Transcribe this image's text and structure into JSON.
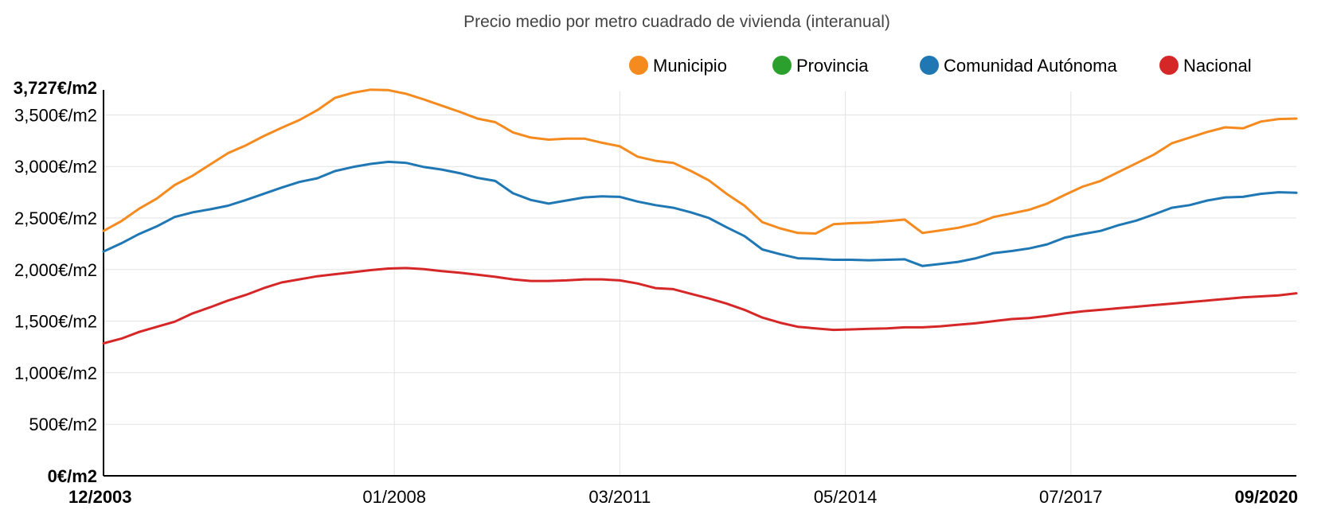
{
  "chart_data": {
    "type": "line",
    "title": "Precio medio por metro cuadrado de vivienda (interanual)",
    "legend_position": "top-right",
    "grid": true,
    "y_max_label": "3,727€/m2",
    "y_ticks": [
      "0€/m2",
      "500€/m2",
      "1,000€/m2",
      "1,500€/m2",
      "2,000€/m2",
      "2,500€/m2",
      "3,000€/m2",
      "3,500€/m2"
    ],
    "y_tick_values": [
      0,
      500,
      1000,
      1500,
      2000,
      2500,
      3000,
      3500
    ],
    "ylim": [
      0,
      3727
    ],
    "x_tick_labels": [
      "12/2003",
      "01/2008",
      "03/2011",
      "05/2014",
      "07/2017",
      "09/2020"
    ],
    "x_tick_dates": [
      "2003-12",
      "2008-01",
      "2011-03",
      "2014-05",
      "2017-07",
      "2020-09"
    ],
    "x_range": [
      "2003-12",
      "2020-09"
    ],
    "series": [
      {
        "name": "Municipio",
        "color": "#f58a1f",
        "points": [
          [
            "2003-12",
            2375
          ],
          [
            "2004-03",
            2470
          ],
          [
            "2004-06",
            2590
          ],
          [
            "2004-09",
            2690
          ],
          [
            "2004-12",
            2820
          ],
          [
            "2005-03",
            2910
          ],
          [
            "2005-06",
            3020
          ],
          [
            "2005-09",
            3130
          ],
          [
            "2005-12",
            3205
          ],
          [
            "2006-03",
            3295
          ],
          [
            "2006-06",
            3375
          ],
          [
            "2006-09",
            3450
          ],
          [
            "2006-12",
            3545
          ],
          [
            "2007-03",
            3665
          ],
          [
            "2007-06",
            3715
          ],
          [
            "2007-09",
            3745
          ],
          [
            "2007-12",
            3740
          ],
          [
            "2008-03",
            3705
          ],
          [
            "2008-06",
            3650
          ],
          [
            "2008-09",
            3590
          ],
          [
            "2008-12",
            3530
          ],
          [
            "2009-03",
            3465
          ],
          [
            "2009-06",
            3430
          ],
          [
            "2009-09",
            3330
          ],
          [
            "2009-12",
            3280
          ],
          [
            "2010-03",
            3260
          ],
          [
            "2010-06",
            3270
          ],
          [
            "2010-09",
            3270
          ],
          [
            "2010-12",
            3230
          ],
          [
            "2011-03",
            3195
          ],
          [
            "2011-06",
            3095
          ],
          [
            "2011-09",
            3055
          ],
          [
            "2011-12",
            3035
          ],
          [
            "2012-03",
            2955
          ],
          [
            "2012-06",
            2865
          ],
          [
            "2012-09",
            2735
          ],
          [
            "2012-12",
            2620
          ],
          [
            "2013-03",
            2460
          ],
          [
            "2013-06",
            2400
          ],
          [
            "2013-09",
            2355
          ],
          [
            "2013-12",
            2350
          ],
          [
            "2014-03",
            2440
          ],
          [
            "2014-06",
            2450
          ],
          [
            "2014-09",
            2455
          ],
          [
            "2014-12",
            2470
          ],
          [
            "2015-03",
            2485
          ],
          [
            "2015-06",
            2355
          ],
          [
            "2015-09",
            2380
          ],
          [
            "2015-12",
            2405
          ],
          [
            "2016-03",
            2445
          ],
          [
            "2016-06",
            2510
          ],
          [
            "2016-09",
            2545
          ],
          [
            "2016-12",
            2580
          ],
          [
            "2017-03",
            2640
          ],
          [
            "2017-06",
            2725
          ],
          [
            "2017-09",
            2805
          ],
          [
            "2017-12",
            2860
          ],
          [
            "2018-03",
            2945
          ],
          [
            "2018-06",
            3030
          ],
          [
            "2018-09",
            3115
          ],
          [
            "2018-12",
            3225
          ],
          [
            "2019-03",
            3280
          ],
          [
            "2019-06",
            3335
          ],
          [
            "2019-09",
            3380
          ],
          [
            "2019-12",
            3370
          ],
          [
            "2020-03",
            3435
          ],
          [
            "2020-06",
            3460
          ],
          [
            "2020-09",
            3465
          ]
        ]
      },
      {
        "name": "Provincia",
        "color": "#2ca02c",
        "points": []
      },
      {
        "name": "Comunidad Autónoma",
        "color": "#1f77b4",
        "points": [
          [
            "2003-12",
            2175
          ],
          [
            "2004-03",
            2255
          ],
          [
            "2004-06",
            2345
          ],
          [
            "2004-09",
            2420
          ],
          [
            "2004-12",
            2510
          ],
          [
            "2005-03",
            2555
          ],
          [
            "2005-06",
            2585
          ],
          [
            "2005-09",
            2620
          ],
          [
            "2005-12",
            2675
          ],
          [
            "2006-03",
            2735
          ],
          [
            "2006-06",
            2795
          ],
          [
            "2006-09",
            2850
          ],
          [
            "2006-12",
            2885
          ],
          [
            "2007-03",
            2955
          ],
          [
            "2007-06",
            2995
          ],
          [
            "2007-09",
            3025
          ],
          [
            "2007-12",
            3045
          ],
          [
            "2008-03",
            3035
          ],
          [
            "2008-06",
            2995
          ],
          [
            "2008-09",
            2970
          ],
          [
            "2008-12",
            2935
          ],
          [
            "2009-03",
            2890
          ],
          [
            "2009-06",
            2860
          ],
          [
            "2009-09",
            2740
          ],
          [
            "2009-12",
            2675
          ],
          [
            "2010-03",
            2640
          ],
          [
            "2010-06",
            2670
          ],
          [
            "2010-09",
            2700
          ],
          [
            "2010-12",
            2710
          ],
          [
            "2011-03",
            2705
          ],
          [
            "2011-06",
            2660
          ],
          [
            "2011-09",
            2625
          ],
          [
            "2011-12",
            2600
          ],
          [
            "2012-03",
            2555
          ],
          [
            "2012-06",
            2500
          ],
          [
            "2012-09",
            2410
          ],
          [
            "2012-12",
            2325
          ],
          [
            "2013-03",
            2195
          ],
          [
            "2013-06",
            2150
          ],
          [
            "2013-09",
            2110
          ],
          [
            "2013-12",
            2105
          ],
          [
            "2014-03",
            2095
          ],
          [
            "2014-06",
            2095
          ],
          [
            "2014-09",
            2090
          ],
          [
            "2014-12",
            2095
          ],
          [
            "2015-03",
            2100
          ],
          [
            "2015-06",
            2035
          ],
          [
            "2015-09",
            2055
          ],
          [
            "2015-12",
            2075
          ],
          [
            "2016-03",
            2110
          ],
          [
            "2016-06",
            2160
          ],
          [
            "2016-09",
            2180
          ],
          [
            "2016-12",
            2205
          ],
          [
            "2017-03",
            2245
          ],
          [
            "2017-06",
            2310
          ],
          [
            "2017-09",
            2345
          ],
          [
            "2017-12",
            2375
          ],
          [
            "2018-03",
            2430
          ],
          [
            "2018-06",
            2475
          ],
          [
            "2018-09",
            2535
          ],
          [
            "2018-12",
            2600
          ],
          [
            "2019-03",
            2625
          ],
          [
            "2019-06",
            2670
          ],
          [
            "2019-09",
            2700
          ],
          [
            "2019-12",
            2705
          ],
          [
            "2020-03",
            2735
          ],
          [
            "2020-06",
            2750
          ],
          [
            "2020-09",
            2745
          ]
        ]
      },
      {
        "name": "Nacional",
        "color": "#d62728",
        "points": [
          [
            "2003-12",
            1285
          ],
          [
            "2004-03",
            1330
          ],
          [
            "2004-06",
            1395
          ],
          [
            "2004-09",
            1445
          ],
          [
            "2004-12",
            1495
          ],
          [
            "2005-03",
            1575
          ],
          [
            "2005-06",
            1635
          ],
          [
            "2005-09",
            1700
          ],
          [
            "2005-12",
            1755
          ],
          [
            "2006-03",
            1820
          ],
          [
            "2006-06",
            1875
          ],
          [
            "2006-09",
            1905
          ],
          [
            "2006-12",
            1935
          ],
          [
            "2007-03",
            1955
          ],
          [
            "2007-06",
            1975
          ],
          [
            "2007-09",
            1995
          ],
          [
            "2007-12",
            2010
          ],
          [
            "2008-03",
            2015
          ],
          [
            "2008-06",
            2005
          ],
          [
            "2008-09",
            1985
          ],
          [
            "2008-12",
            1970
          ],
          [
            "2009-03",
            1950
          ],
          [
            "2009-06",
            1930
          ],
          [
            "2009-09",
            1905
          ],
          [
            "2009-12",
            1890
          ],
          [
            "2010-03",
            1890
          ],
          [
            "2010-06",
            1895
          ],
          [
            "2010-09",
            1905
          ],
          [
            "2010-12",
            1905
          ],
          [
            "2011-03",
            1895
          ],
          [
            "2011-06",
            1865
          ],
          [
            "2011-09",
            1820
          ],
          [
            "2011-12",
            1810
          ],
          [
            "2012-03",
            1765
          ],
          [
            "2012-06",
            1720
          ],
          [
            "2012-09",
            1670
          ],
          [
            "2012-12",
            1610
          ],
          [
            "2013-03",
            1535
          ],
          [
            "2013-06",
            1485
          ],
          [
            "2013-09",
            1445
          ],
          [
            "2013-12",
            1430
          ],
          [
            "2014-03",
            1415
          ],
          [
            "2014-06",
            1420
          ],
          [
            "2014-09",
            1425
          ],
          [
            "2014-12",
            1430
          ],
          [
            "2015-03",
            1440
          ],
          [
            "2015-06",
            1440
          ],
          [
            "2015-09",
            1450
          ],
          [
            "2015-12",
            1465
          ],
          [
            "2016-03",
            1480
          ],
          [
            "2016-06",
            1500
          ],
          [
            "2016-09",
            1520
          ],
          [
            "2016-12",
            1530
          ],
          [
            "2017-03",
            1550
          ],
          [
            "2017-06",
            1575
          ],
          [
            "2017-09",
            1595
          ],
          [
            "2017-12",
            1610
          ],
          [
            "2018-03",
            1625
          ],
          [
            "2018-06",
            1640
          ],
          [
            "2018-09",
            1655
          ],
          [
            "2018-12",
            1670
          ],
          [
            "2019-03",
            1685
          ],
          [
            "2019-06",
            1700
          ],
          [
            "2019-09",
            1715
          ],
          [
            "2019-12",
            1730
          ],
          [
            "2020-03",
            1740
          ],
          [
            "2020-06",
            1750
          ],
          [
            "2020-09",
            1770
          ]
        ]
      }
    ]
  }
}
